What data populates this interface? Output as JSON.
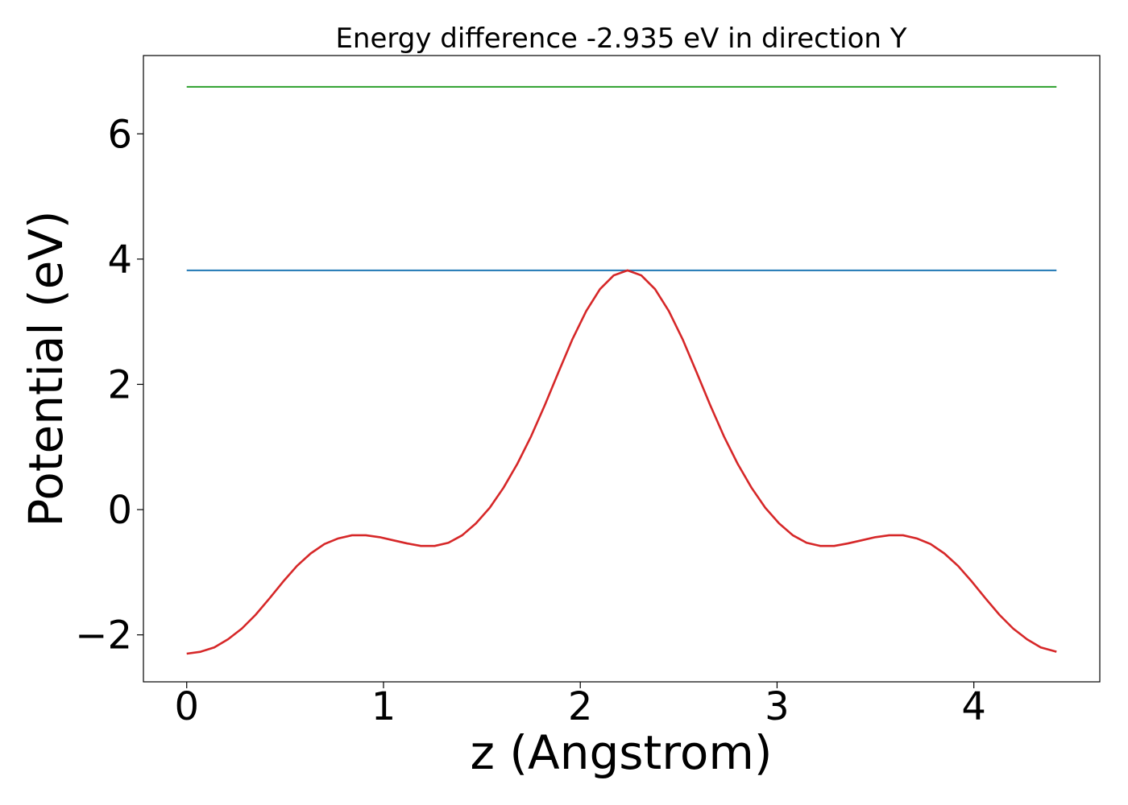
{
  "chart_data": {
    "type": "line",
    "title": "Energy difference -2.935 eV in direction Y",
    "xlabel": "z (Angstrom)",
    "ylabel": "Potential (eV)",
    "xlim": [
      -0.22,
      4.64
    ],
    "ylim": [
      -2.75,
      7.25
    ],
    "xticks": [
      0,
      1,
      2,
      3,
      4
    ],
    "xtick_labels": [
      "0",
      "1",
      "2",
      "3",
      "4"
    ],
    "yticks": [
      -2,
      0,
      2,
      4,
      6
    ],
    "ytick_labels": [
      "−2",
      "0",
      "2",
      "4",
      "6"
    ],
    "grid": false,
    "legend": false,
    "series": [
      {
        "color": "#2ca02c",
        "x": [
          0,
          4.42
        ],
        "y": [
          6.75,
          6.75
        ]
      },
      {
        "color": "#1f77b4",
        "x": [
          0,
          4.42
        ],
        "y": [
          3.82,
          3.82
        ]
      },
      {
        "color": "#d62728",
        "x": [
          0.0,
          0.07,
          0.14,
          0.21,
          0.28,
          0.35,
          0.42,
          0.49,
          0.56,
          0.63,
          0.7,
          0.77,
          0.84,
          0.91,
          0.98,
          1.05,
          1.12,
          1.19,
          1.26,
          1.33,
          1.4,
          1.47,
          1.54,
          1.61,
          1.68,
          1.75,
          1.82,
          1.89,
          1.96,
          2.03,
          2.1,
          2.17,
          2.24,
          2.31,
          2.38,
          2.45,
          2.52,
          2.59,
          2.66,
          2.73,
          2.8,
          2.87,
          2.94,
          3.01,
          3.08,
          3.15,
          3.22,
          3.29,
          3.36,
          3.43,
          3.5,
          3.57,
          3.64,
          3.71,
          3.78,
          3.85,
          3.92,
          3.99,
          4.06,
          4.13,
          4.2,
          4.27,
          4.34,
          4.42
        ],
        "y": [
          -2.3,
          -2.27,
          -2.2,
          -2.07,
          -1.9,
          -1.68,
          -1.42,
          -1.15,
          -0.9,
          -0.7,
          -0.55,
          -0.46,
          -0.41,
          -0.41,
          -0.44,
          -0.49,
          -0.54,
          -0.58,
          -0.58,
          -0.53,
          -0.41,
          -0.22,
          0.03,
          0.35,
          0.73,
          1.17,
          1.67,
          2.2,
          2.72,
          3.17,
          3.52,
          3.74,
          3.82,
          3.74,
          3.52,
          3.17,
          2.72,
          2.2,
          1.67,
          1.17,
          0.73,
          0.35,
          0.03,
          -0.22,
          -0.41,
          -0.53,
          -0.58,
          -0.58,
          -0.54,
          -0.49,
          -0.44,
          -0.41,
          -0.41,
          -0.46,
          -0.55,
          -0.7,
          -0.9,
          -1.15,
          -1.42,
          -1.68,
          -1.9,
          -2.07,
          -2.2,
          -2.27
        ]
      }
    ]
  }
}
